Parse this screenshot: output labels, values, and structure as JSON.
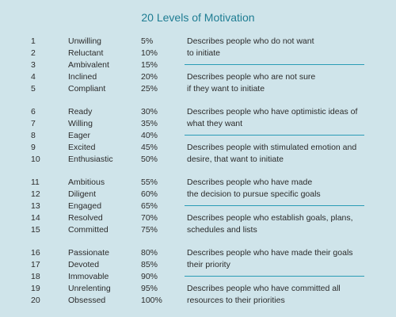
{
  "title": "20 Levels of Motivation",
  "rows": [
    {
      "num": "1",
      "name": "Unwilling",
      "pct": "5%",
      "desc": "Describes people who do not want"
    },
    {
      "num": "2",
      "name": "Reluctant",
      "pct": "10%",
      "desc": "to initiate"
    },
    {
      "num": "3",
      "name": "Ambivalent",
      "pct": "15%",
      "desc": ""
    },
    {
      "num": "4",
      "name": "Inclined",
      "pct": "20%",
      "desc": "Describes people  who are not sure"
    },
    {
      "num": "5",
      "name": "Compliant",
      "pct": "25%",
      "desc": "if they want to initiate"
    },
    {
      "num": "6",
      "name": "Ready",
      "pct": "30%",
      "desc": "Describes people who have optimistic ideas of"
    },
    {
      "num": "7",
      "name": "Willing",
      "pct": "35%",
      "desc": "what they want"
    },
    {
      "num": "8",
      "name": "Eager",
      "pct": "40%",
      "desc": ""
    },
    {
      "num": "9",
      "name": "Excited",
      "pct": "45%",
      "desc": "Describes people with stimulated emotion and"
    },
    {
      "num": "10",
      "name": "Enthusiastic",
      "pct": "50%",
      "desc": "desire, that want to initiate"
    },
    {
      "num": "11",
      "name": "Ambitious",
      "pct": "55%",
      "desc": "Describes people who have made"
    },
    {
      "num": "12",
      "name": "Diligent",
      "pct": "60%",
      "desc": "the decision to pursue specific goals"
    },
    {
      "num": "13",
      "name": "Engaged",
      "pct": "65%",
      "desc": ""
    },
    {
      "num": "14",
      "name": "Resolved",
      "pct": "70%",
      "desc": "Describes people who establish goals, plans,"
    },
    {
      "num": "15",
      "name": "Committed",
      "pct": "75%",
      "desc": "schedules and lists"
    },
    {
      "num": "16",
      "name": "Passionate",
      "pct": "80%",
      "desc": "Describes people who have made their goals"
    },
    {
      "num": "17",
      "name": "Devoted",
      "pct": "85%",
      "desc": "their priority"
    },
    {
      "num": "18",
      "name": "Immovable",
      "pct": "90%",
      "desc": ""
    },
    {
      "num": "19",
      "name": "Unrelenting",
      "pct": "95%",
      "desc": "Describes people who have committed all"
    },
    {
      "num": "20",
      "name": "Obsessed",
      "pct": "100%",
      "desc": "resources to their priorities"
    }
  ],
  "colors": {
    "background": "#cfe4ea",
    "title": "#1f7d93",
    "divider": "#2a9cb6"
  }
}
